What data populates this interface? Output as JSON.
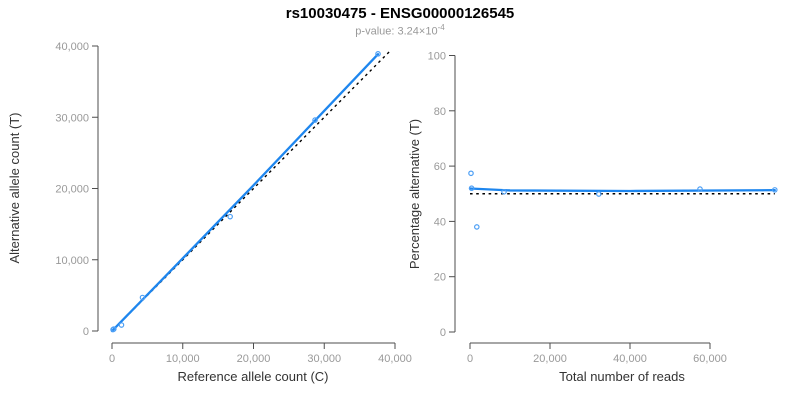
{
  "header": {
    "title": "rs10030475 - ENSG00000126545",
    "subtitle_text": "p-value: 3.24×10",
    "subtitle_exponent": "-4"
  },
  "colors": {
    "fit_line": "#1e86ee",
    "point_stroke": "#4d9ff5",
    "reference_line": "#000000",
    "axis": "#4d4d4d",
    "tick_label": "#999999",
    "axis_title": "#333333",
    "title": "#000000",
    "subtitle": "#999999"
  },
  "chart_data": [
    {
      "id": "allele-counts",
      "type": "scatter",
      "xlabel": "Reference allele count (C)",
      "ylabel": "Alternative allele count (T)",
      "xlim": [
        0,
        40000
      ],
      "ylim": [
        0,
        40000
      ],
      "xticks": [
        0,
        10000,
        20000,
        30000,
        40000
      ],
      "yticks": [
        0,
        10000,
        20000,
        30000,
        40000
      ],
      "grid": false,
      "points": [
        [
          150,
          200
        ],
        [
          260,
          280
        ],
        [
          1340,
          840
        ],
        [
          4310,
          4700
        ],
        [
          16700,
          16050
        ],
        [
          28700,
          29600
        ],
        [
          37600,
          38900
        ]
      ],
      "fit_line": [
        [
          0,
          0
        ],
        [
          8000,
          8150
        ],
        [
          20000,
          20450
        ],
        [
          30000,
          30900
        ],
        [
          37600,
          38850
        ]
      ],
      "reference_line": [
        [
          0,
          0
        ],
        [
          39500,
          39500
        ]
      ]
    },
    {
      "id": "percentage-vs-reads",
      "type": "scatter",
      "xlabel": "Total number of reads",
      "ylabel": "Percentage alternative (T)",
      "xlim": [
        0,
        76500
      ],
      "ylim": [
        0,
        100
      ],
      "xticks": [
        0,
        20000,
        40000,
        60000
      ],
      "yticks": [
        0,
        20,
        40,
        60,
        80,
        100
      ],
      "grid": false,
      "points": [
        [
          250,
          57.4
        ],
        [
          400,
          52
        ],
        [
          1700,
          38
        ],
        [
          8500,
          50.7
        ],
        [
          32200,
          49.9
        ],
        [
          57500,
          51.7
        ],
        [
          76200,
          51.4
        ]
      ],
      "fit_line": [
        [
          0,
          51.9
        ],
        [
          10000,
          51.2
        ],
        [
          40000,
          51.0
        ],
        [
          76200,
          51.3
        ]
      ],
      "reference_line": [
        [
          0,
          50
        ],
        [
          76200,
          50
        ]
      ]
    }
  ]
}
